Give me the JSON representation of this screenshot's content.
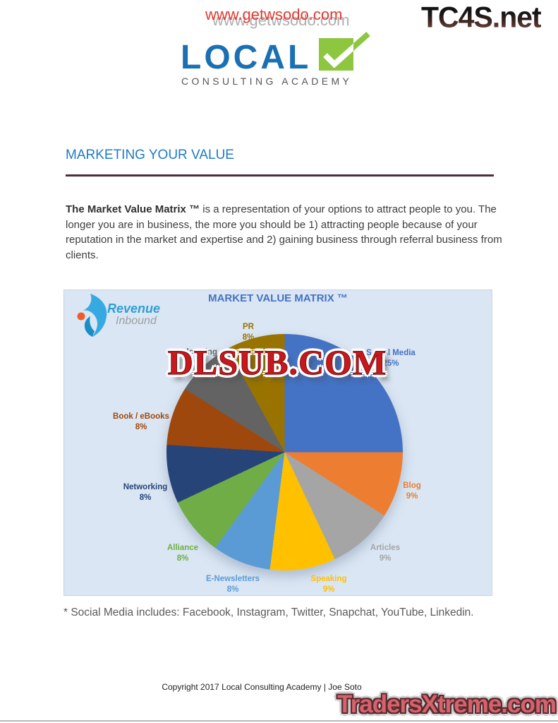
{
  "watermarks": {
    "top_url": "www.getwsodo.com",
    "corner_logo": "TC4S.net",
    "chart_overlay": "DLSUB.COM",
    "bottom_right": "TradersXtreme.com"
  },
  "logo": {
    "title": "LOCAL",
    "subtitle": "CONSULTING ACADEMY",
    "brand_blue": "#1b70b4",
    "check_green": "#8dc63f"
  },
  "section": {
    "heading": "MARKETING YOUR VALUE",
    "heading_color": "#1e7ac6"
  },
  "paragraph": {
    "bold_lead": "The Market Value Matrix ™",
    "text": " is a representation of your options to attract people to you. The longer you are in business, the more you should be 1) attracting people because of your reputation in the market and expertise and 2) gaining business through referral business from clients."
  },
  "chart_brand": {
    "line1": "Revenue",
    "line2": "Inbound"
  },
  "chart_data": {
    "type": "pie",
    "title": "MARKET VALUE MATRIX ™",
    "legend_position": "labels-around-pie",
    "panel_background": "#dae6f3",
    "start_angle_deg": 0,
    "direction": "clockwise",
    "slices": [
      {
        "name": "Social Media",
        "value": 25,
        "label": "25%",
        "color": "#4472C4"
      },
      {
        "name": "Blog",
        "value": 9,
        "label": "9%",
        "color": "#ED7D31"
      },
      {
        "name": "Articles",
        "value": 9,
        "label": "9%",
        "color": "#A5A5A5"
      },
      {
        "name": "Speaking",
        "value": 9,
        "label": "9%",
        "color": "#FFC000"
      },
      {
        "name": "E-Newsletters",
        "value": 8,
        "label": "8%",
        "color": "#5B9BD5"
      },
      {
        "name": "Alliance",
        "value": 8,
        "label": "8%",
        "color": "#70AD47"
      },
      {
        "name": "Networking",
        "value": 8,
        "label": "8%",
        "color": "#264478"
      },
      {
        "name": "Book / eBooks",
        "value": 8,
        "label": "8%",
        "color": "#9E480E"
      },
      {
        "name": "Podcasting",
        "value": 8,
        "label": "8%",
        "color": "#636363"
      },
      {
        "name": "PR",
        "value": 8,
        "label": "8%",
        "color": "#997300"
      }
    ]
  },
  "footnote": "* Social Media includes: Facebook, Instagram, Twitter, Snapchat, YouTube, Linkedin.",
  "footer": "Copyright 2017 Local Consulting Academy | Joe Soto"
}
